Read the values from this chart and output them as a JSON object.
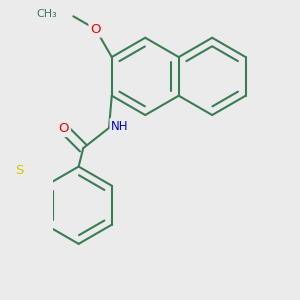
{
  "bg_color": "#ebebeb",
  "bond_color": "#3a7d55",
  "bond_width": 1.5,
  "atom_colors": {
    "O": "#ff0000",
    "N": "#0000cc",
    "S": "#cccc00",
    "C": "#3a7d55"
  },
  "font_size": 8.5,
  "fig_size": [
    3.0,
    3.0
  ],
  "dpi": 100
}
